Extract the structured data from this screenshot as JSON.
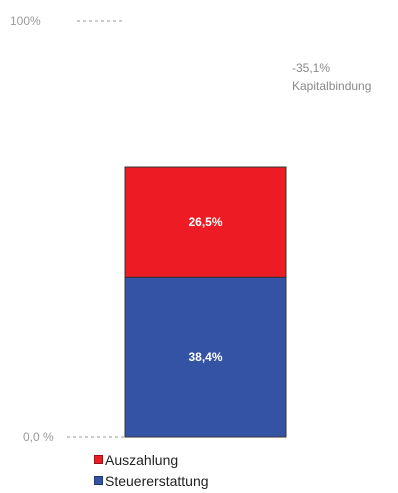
{
  "chart_data": {
    "type": "bar",
    "stacked": true,
    "categories": [
      ""
    ],
    "series": [
      {
        "name": "Steuererstattung",
        "values": [
          38.4
        ],
        "label": "38,4%",
        "color": "#3453a4"
      },
      {
        "name": "Auszahlung",
        "values": [
          26.5
        ],
        "label": "26,5%",
        "color": "#ed1c24"
      }
    ],
    "ylim": [
      0,
      100
    ],
    "y_ticks": [
      {
        "value": 100,
        "label": "100%"
      },
      {
        "value": 0,
        "label": "0,0 %"
      }
    ],
    "annotation": {
      "value": "-35,1%",
      "text": "Kapitalbindung"
    },
    "legend_position": "bottom"
  }
}
